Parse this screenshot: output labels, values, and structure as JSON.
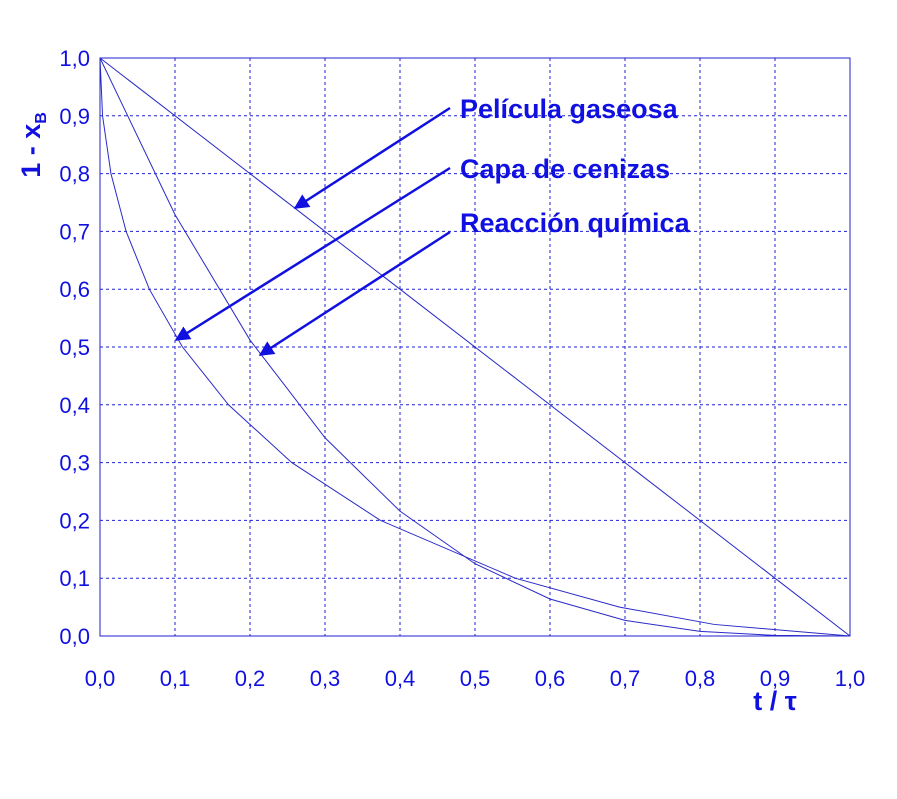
{
  "chart_data": {
    "type": "line",
    "xlabel": "t / τ",
    "ylabel": "1 - x",
    "ylabel_subscript": "B",
    "xlim": [
      0,
      1
    ],
    "ylim": [
      0,
      1
    ],
    "xticks": [
      {
        "value": 0,
        "label": "0,0"
      },
      {
        "value": 0.1,
        "label": "0,1"
      },
      {
        "value": 0.2,
        "label": "0,2"
      },
      {
        "value": 0.3,
        "label": "0,3"
      },
      {
        "value": 0.4,
        "label": "0,4"
      },
      {
        "value": 0.5,
        "label": "0,5"
      },
      {
        "value": 0.6,
        "label": "0,6"
      },
      {
        "value": 0.7,
        "label": "0,7"
      },
      {
        "value": 0.8,
        "label": "0,8"
      },
      {
        "value": 0.9,
        "label": "0,9"
      },
      {
        "value": 1,
        "label": "1,0"
      }
    ],
    "yticks": [
      {
        "value": 0,
        "label": "0,0"
      },
      {
        "value": 0.1,
        "label": "0,1"
      },
      {
        "value": 0.2,
        "label": "0,2"
      },
      {
        "value": 0.3,
        "label": "0,3"
      },
      {
        "value": 0.4,
        "label": "0,4"
      },
      {
        "value": 0.5,
        "label": "0,5"
      },
      {
        "value": 0.6,
        "label": "0,6"
      },
      {
        "value": 0.7,
        "label": "0,7"
      },
      {
        "value": 0.8,
        "label": "0,8"
      },
      {
        "value": 0.9,
        "label": "0,9"
      },
      {
        "value": 1,
        "label": "1,0"
      }
    ],
    "grid": true,
    "series": [
      {
        "name": "Película gaseosa",
        "color": "#2a2ac8",
        "x": [
          0,
          1
        ],
        "values": [
          1,
          0
        ]
      },
      {
        "name": "Capa de cenizas",
        "color": "#2a2ac8",
        "x": [
          0,
          0.0034,
          0.0146,
          0.0348,
          0.0658,
          0.11,
          0.1713,
          0.2557,
          0.374,
          0.5537,
          0.6928,
          0.819,
          1
        ],
        "values": [
          1,
          0.9,
          0.8,
          0.7,
          0.6,
          0.5,
          0.4,
          0.3,
          0.2,
          0.1,
          0.05,
          0.02,
          0
        ]
      },
      {
        "name": "Reacción química",
        "color": "#2a2ac8",
        "x": [
          0,
          0.1,
          0.2,
          0.3,
          0.4,
          0.5,
          0.6,
          0.7,
          0.8,
          0.9,
          1
        ],
        "values": [
          1,
          0.729,
          0.512,
          0.343,
          0.216,
          0.125,
          0.064,
          0.027,
          0.008,
          0.001,
          0
        ]
      }
    ]
  }
}
